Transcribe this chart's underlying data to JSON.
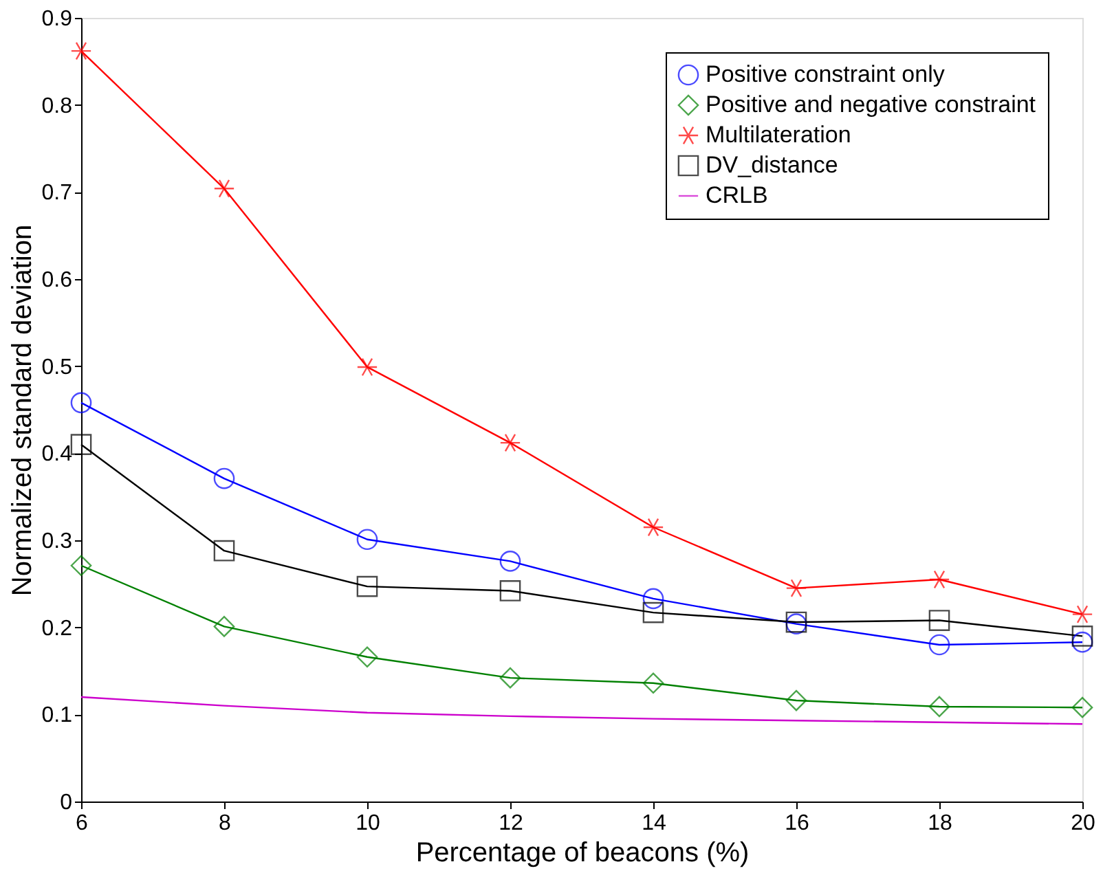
{
  "chart_data": {
    "type": "line",
    "xlabel": "Percentage of beacons (%)",
    "ylabel": "Normalized standard deviation",
    "x": [
      6,
      8,
      10,
      12,
      14,
      16,
      18,
      20
    ],
    "xlim": [
      6,
      20
    ],
    "xticks": [
      6,
      8,
      10,
      12,
      14,
      16,
      18,
      20
    ],
    "ylim": [
      0,
      0.9
    ],
    "yticks": [
      0,
      0.1,
      0.2,
      0.3,
      0.4,
      0.5,
      0.6,
      0.7,
      0.8,
      0.9
    ],
    "grid": false,
    "legend": "top right",
    "line_style": "solid",
    "series": [
      {
        "name": "Positive constraint only",
        "color": "#0000ff",
        "marker": "circle",
        "values": [
          0.458,
          0.371,
          0.301,
          0.276,
          0.233,
          0.204,
          0.18,
          0.183
        ]
      },
      {
        "name": "Positive and negative constraint",
        "color": "#008000",
        "marker": "diamond",
        "values": [
          0.271,
          0.201,
          0.166,
          0.142,
          0.136,
          0.116,
          0.109,
          0.108
        ]
      },
      {
        "name": "Multilateration",
        "color": "#ff0000",
        "marker": "cross",
        "values": [
          0.862,
          0.704,
          0.499,
          0.412,
          0.315,
          0.245,
          0.255,
          0.215
        ]
      },
      {
        "name": "DV_distance",
        "color": "#000000",
        "marker": "square",
        "values": [
          0.41,
          0.288,
          0.247,
          0.242,
          0.217,
          0.206,
          0.208,
          0.19
        ]
      },
      {
        "name": "CRLB",
        "color": "#cc00cc",
        "marker": "none",
        "values": [
          0.12,
          0.11,
          0.102,
          0.098,
          0.095,
          0.093,
          0.091,
          0.089
        ]
      }
    ]
  }
}
